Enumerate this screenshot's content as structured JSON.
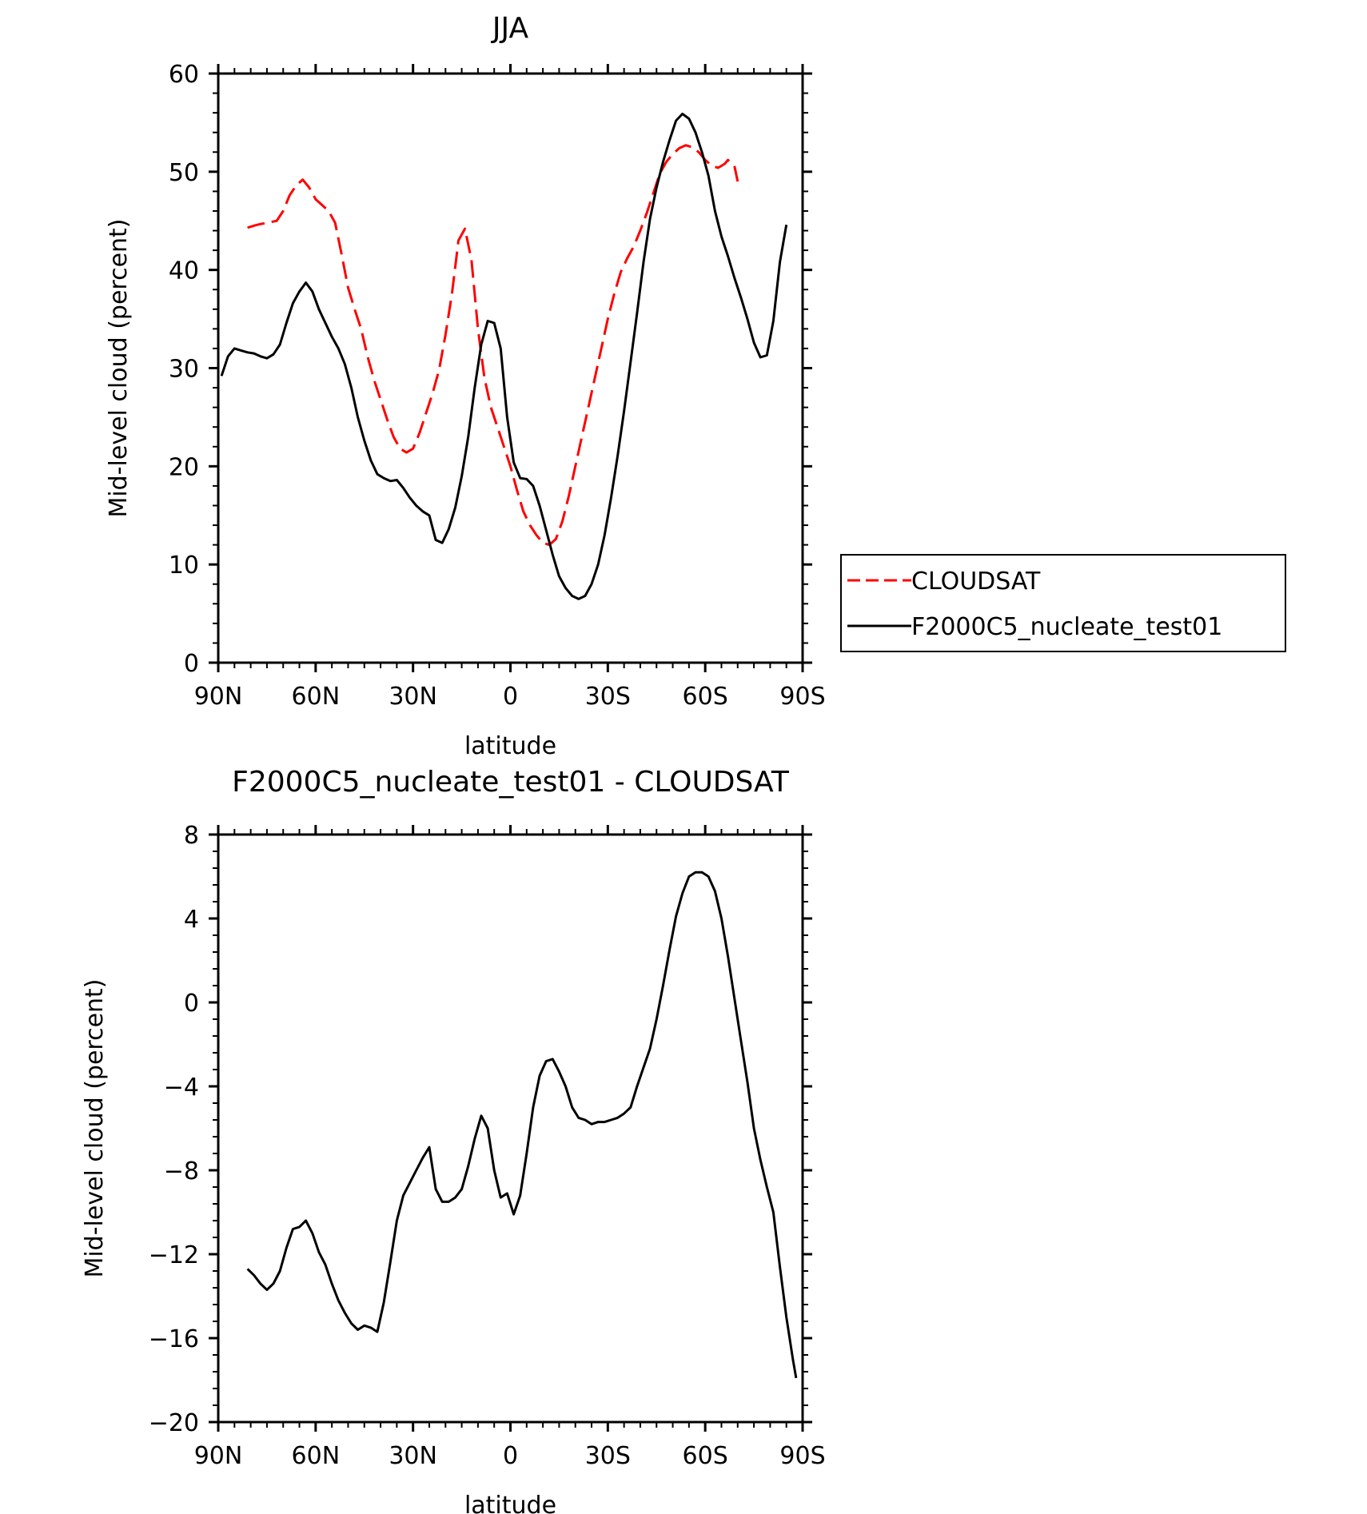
{
  "chart_data": [
    {
      "type": "line",
      "title": "JJA",
      "xlabel": "latitude",
      "ylabel": "Mid-level cloud (percent)",
      "xlim": [
        90,
        -90
      ],
      "ylim": [
        0,
        60
      ],
      "x_ticks": [
        90,
        60,
        30,
        0,
        -30,
        -60,
        -90
      ],
      "x_tick_labels": [
        "90N",
        "60N",
        "30N",
        "0",
        "30S",
        "60S",
        "90S"
      ],
      "y_ticks": [
        0,
        10,
        20,
        30,
        40,
        50,
        60
      ],
      "y_tick_labels": [
        "0",
        "10",
        "20",
        "30",
        "40",
        "50",
        "60"
      ],
      "legend_position": "right",
      "series": [
        {
          "name": "CLOUDSAT",
          "color": "#ff0000",
          "dash": "dashed",
          "points": [
            [
              81,
              44.3
            ],
            [
              78,
              44.6
            ],
            [
              75,
              44.8
            ],
            [
              72,
              45.0
            ],
            [
              70,
              46.0
            ],
            [
              68,
              47.6
            ],
            [
              66,
              48.6
            ],
            [
              64,
              49.2
            ],
            [
              62,
              48.4
            ],
            [
              60,
              47.2
            ],
            [
              58,
              46.6
            ],
            [
              56,
              46.0
            ],
            [
              54,
              44.8
            ],
            [
              52,
              41.6
            ],
            [
              50,
              38.2
            ],
            [
              48,
              36.0
            ],
            [
              46,
              34.0
            ],
            [
              44,
              31.2
            ],
            [
              42,
              28.8
            ],
            [
              40,
              26.8
            ],
            [
              38,
              24.8
            ],
            [
              36,
              23.0
            ],
            [
              34,
              21.8
            ],
            [
              32,
              21.4
            ],
            [
              30,
              21.8
            ],
            [
              28,
              23.4
            ],
            [
              26,
              25.4
            ],
            [
              24,
              27.4
            ],
            [
              22,
              29.8
            ],
            [
              20,
              33.4
            ],
            [
              18,
              37.6
            ],
            [
              16,
              43.0
            ],
            [
              14,
              44.2
            ],
            [
              12,
              41.0
            ],
            [
              10,
              34.0
            ],
            [
              8,
              29.0
            ],
            [
              6,
              26.0
            ],
            [
              4,
              24.0
            ],
            [
              2,
              22.0
            ],
            [
              0,
              20.0
            ],
            [
              -2,
              17.6
            ],
            [
              -4,
              15.4
            ],
            [
              -6,
              14.0
            ],
            [
              -8,
              13.0
            ],
            [
              -10,
              12.2
            ],
            [
              -12,
              12.0
            ],
            [
              -14,
              12.6
            ],
            [
              -16,
              14.4
            ],
            [
              -18,
              17.0
            ],
            [
              -20,
              20.0
            ],
            [
              -22,
              23.0
            ],
            [
              -24,
              26.0
            ],
            [
              -26,
              29.0
            ],
            [
              -28,
              32.0
            ],
            [
              -30,
              35.0
            ],
            [
              -32,
              37.6
            ],
            [
              -34,
              39.8
            ],
            [
              -36,
              41.2
            ],
            [
              -38,
              42.4
            ],
            [
              -40,
              44.0
            ],
            [
              -42,
              45.8
            ],
            [
              -44,
              47.8
            ],
            [
              -46,
              49.8
            ],
            [
              -48,
              51.0
            ],
            [
              -50,
              51.8
            ],
            [
              -52,
              52.4
            ],
            [
              -54,
              52.7
            ],
            [
              -56,
              52.5
            ],
            [
              -58,
              52.0
            ],
            [
              -60,
              51.2
            ],
            [
              -62,
              50.6
            ],
            [
              -64,
              50.4
            ],
            [
              -66,
              50.8
            ],
            [
              -67,
              51.2
            ],
            [
              -69,
              50.6
            ],
            [
              -70,
              49.0
            ]
          ]
        },
        {
          "name": "F2000C5_nucleate_test01",
          "color": "#000000",
          "dash": "solid",
          "points": [
            [
              89,
              29.2
            ],
            [
              87,
              31.2
            ],
            [
              85,
              32.0
            ],
            [
              83,
              31.8
            ],
            [
              81,
              31.6
            ],
            [
              79,
              31.5
            ],
            [
              77,
              31.2
            ],
            [
              75,
              31.0
            ],
            [
              73,
              31.4
            ],
            [
              71,
              32.4
            ],
            [
              69,
              34.6
            ],
            [
              67,
              36.6
            ],
            [
              65,
              37.8
            ],
            [
              63,
              38.7
            ],
            [
              61,
              37.8
            ],
            [
              59,
              36.0
            ],
            [
              57,
              34.6
            ],
            [
              55,
              33.2
            ],
            [
              53,
              32.0
            ],
            [
              51,
              30.4
            ],
            [
              49,
              28.0
            ],
            [
              47,
              25.0
            ],
            [
              45,
              22.6
            ],
            [
              43,
              20.6
            ],
            [
              41,
              19.2
            ],
            [
              39,
              18.8
            ],
            [
              37,
              18.5
            ],
            [
              35,
              18.6
            ],
            [
              33,
              17.8
            ],
            [
              31,
              16.8
            ],
            [
              29,
              16.0
            ],
            [
              27,
              15.4
            ],
            [
              25,
              15.0
            ],
            [
              23,
              12.5
            ],
            [
              21,
              12.2
            ],
            [
              19,
              13.6
            ],
            [
              17,
              15.8
            ],
            [
              15,
              19.0
            ],
            [
              13,
              23.0
            ],
            [
              11,
              28.0
            ],
            [
              9,
              32.4
            ],
            [
              7,
              34.8
            ],
            [
              5,
              34.6
            ],
            [
              3,
              32.0
            ],
            [
              1,
              25.0
            ],
            [
              -1,
              20.4
            ],
            [
              -3,
              18.8
            ],
            [
              -5,
              18.7
            ],
            [
              -7,
              18.0
            ],
            [
              -9,
              16.0
            ],
            [
              -11,
              13.5
            ],
            [
              -13,
              11.0
            ],
            [
              -15,
              8.8
            ],
            [
              -17,
              7.6
            ],
            [
              -19,
              6.8
            ],
            [
              -21,
              6.5
            ],
            [
              -23,
              6.8
            ],
            [
              -25,
              8.0
            ],
            [
              -27,
              10.0
            ],
            [
              -29,
              13.0
            ],
            [
              -31,
              16.8
            ],
            [
              -33,
              21.0
            ],
            [
              -35,
              25.6
            ],
            [
              -37,
              30.6
            ],
            [
              -39,
              35.6
            ],
            [
              -41,
              40.8
            ],
            [
              -43,
              45.2
            ],
            [
              -45,
              48.4
            ],
            [
              -47,
              51.0
            ],
            [
              -49,
              53.2
            ],
            [
              -51,
              55.2
            ],
            [
              -53,
              55.9
            ],
            [
              -55,
              55.4
            ],
            [
              -57,
              54.0
            ],
            [
              -59,
              52.0
            ],
            [
              -61,
              49.6
            ],
            [
              -63,
              46.0
            ],
            [
              -65,
              43.4
            ],
            [
              -67,
              41.4
            ],
            [
              -69,
              39.2
            ],
            [
              -71,
              37.2
            ],
            [
              -73,
              35.0
            ],
            [
              -75,
              32.6
            ],
            [
              -77,
              31.1
            ],
            [
              -79,
              31.3
            ],
            [
              -81,
              34.8
            ],
            [
              -83,
              40.8
            ],
            [
              -85,
              44.6
            ]
          ]
        }
      ]
    },
    {
      "type": "line",
      "title": "F2000C5_nucleate_test01 - CLOUDSAT",
      "xlabel": "latitude",
      "ylabel": "Mid-level cloud (percent)",
      "xlim": [
        90,
        -90
      ],
      "ylim": [
        -20,
        8
      ],
      "x_ticks": [
        90,
        60,
        30,
        0,
        -30,
        -60,
        -90
      ],
      "x_tick_labels": [
        "90N",
        "60N",
        "30N",
        "0",
        "30S",
        "60S",
        "90S"
      ],
      "y_ticks": [
        -20,
        -16,
        -12,
        -8,
        -4,
        0,
        4,
        8
      ],
      "y_tick_labels": [
        "−20",
        "−16",
        "−12",
        "−8",
        "−4",
        "0",
        "4",
        "8"
      ],
      "series": [
        {
          "color": "#000000",
          "dash": "solid",
          "points": [
            [
              81,
              -12.7
            ],
            [
              79,
              -13.0
            ],
            [
              77,
              -13.4
            ],
            [
              75,
              -13.7
            ],
            [
              73,
              -13.4
            ],
            [
              71,
              -12.8
            ],
            [
              69,
              -11.7
            ],
            [
              67,
              -10.8
            ],
            [
              65,
              -10.7
            ],
            [
              63,
              -10.4
            ],
            [
              61,
              -11.0
            ],
            [
              59,
              -11.9
            ],
            [
              57,
              -12.5
            ],
            [
              55,
              -13.4
            ],
            [
              53,
              -14.2
            ],
            [
              51,
              -14.8
            ],
            [
              49,
              -15.3
            ],
            [
              47,
              -15.6
            ],
            [
              45,
              -15.4
            ],
            [
              43,
              -15.5
            ],
            [
              41,
              -15.7
            ],
            [
              39,
              -14.3
            ],
            [
              37,
              -12.4
            ],
            [
              35,
              -10.4
            ],
            [
              33,
              -9.2
            ],
            [
              31,
              -8.6
            ],
            [
              29,
              -8.0
            ],
            [
              27,
              -7.4
            ],
            [
              25,
              -6.9
            ],
            [
              23,
              -8.9
            ],
            [
              21,
              -9.5
            ],
            [
              19,
              -9.5
            ],
            [
              17,
              -9.3
            ],
            [
              15,
              -8.9
            ],
            [
              13,
              -7.8
            ],
            [
              11,
              -6.5
            ],
            [
              9,
              -5.4
            ],
            [
              7,
              -6.0
            ],
            [
              5,
              -8.0
            ],
            [
              3,
              -9.3
            ],
            [
              1,
              -9.1
            ],
            [
              -1,
              -10.1
            ],
            [
              -3,
              -9.2
            ],
            [
              -5,
              -7.2
            ],
            [
              -7,
              -5.0
            ],
            [
              -9,
              -3.5
            ],
            [
              -11,
              -2.8
            ],
            [
              -13,
              -2.7
            ],
            [
              -15,
              -3.3
            ],
            [
              -17,
              -4.0
            ],
            [
              -19,
              -5.0
            ],
            [
              -21,
              -5.5
            ],
            [
              -23,
              -5.6
            ],
            [
              -25,
              -5.8
            ],
            [
              -27,
              -5.7
            ],
            [
              -29,
              -5.7
            ],
            [
              -31,
              -5.6
            ],
            [
              -33,
              -5.5
            ],
            [
              -35,
              -5.3
            ],
            [
              -37,
              -5.0
            ],
            [
              -39,
              -4.0
            ],
            [
              -41,
              -3.1
            ],
            [
              -43,
              -2.2
            ],
            [
              -45,
              -0.8
            ],
            [
              -47,
              0.8
            ],
            [
              -49,
              2.5
            ],
            [
              -51,
              4.1
            ],
            [
              -53,
              5.2
            ],
            [
              -55,
              6.0
            ],
            [
              -57,
              6.2
            ],
            [
              -59,
              6.2
            ],
            [
              -61,
              6.0
            ],
            [
              -63,
              5.3
            ],
            [
              -65,
              4.0
            ],
            [
              -67,
              2.2
            ],
            [
              -69,
              0.2
            ],
            [
              -71,
              -1.8
            ],
            [
              -73,
              -3.8
            ],
            [
              -75,
              -6.0
            ],
            [
              -77,
              -7.5
            ],
            [
              -79,
              -8.8
            ],
            [
              -81,
              -10.0
            ],
            [
              -83,
              -12.6
            ],
            [
              -85,
              -15.0
            ],
            [
              -87,
              -17.0
            ],
            [
              -88,
              -17.9
            ]
          ]
        }
      ]
    }
  ]
}
